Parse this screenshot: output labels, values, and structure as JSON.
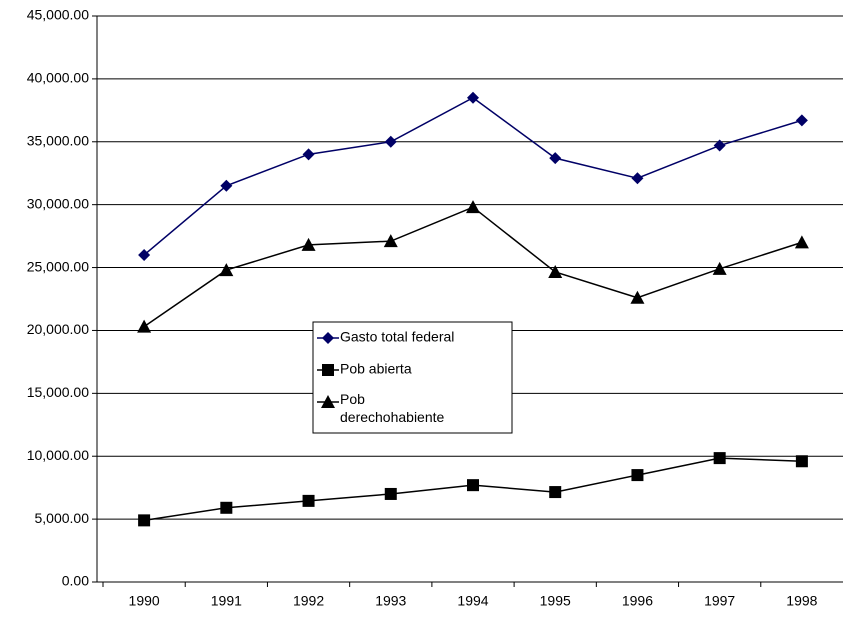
{
  "chart_data": {
    "type": "line",
    "categories": [
      "1990",
      "1991",
      "1992",
      "1993",
      "1994",
      "1995",
      "1996",
      "1997",
      "1998"
    ],
    "series": [
      {
        "name": "Gasto total federal",
        "color": "#000066",
        "marker": "diamond",
        "values": [
          26000,
          31500,
          34000,
          35000,
          38500,
          33700,
          32100,
          34700,
          36700
        ]
      },
      {
        "name": "Pob abierta",
        "color": "#000000",
        "marker": "square",
        "values": [
          4900,
          5900,
          6450,
          7000,
          7700,
          7150,
          8500,
          9850,
          9600
        ]
      },
      {
        "name": "Pob derechohabiente",
        "color": "#000000",
        "marker": "triangle",
        "values": [
          20300,
          24800,
          26800,
          27100,
          29800,
          24650,
          22600,
          24900,
          27000
        ]
      }
    ],
    "ylim": [
      0,
      45000
    ],
    "yticks": [
      {
        "value": 0,
        "label": "0.00"
      },
      {
        "value": 5000,
        "label": "5,000.00"
      },
      {
        "value": 10000,
        "label": "10,000.00"
      },
      {
        "value": 15000,
        "label": "15,000.00"
      },
      {
        "value": 20000,
        "label": "20,000.00"
      },
      {
        "value": 25000,
        "label": "25,000.00"
      },
      {
        "value": 30000,
        "label": "30,000.00"
      },
      {
        "value": 35000,
        "label": "35,000.00"
      },
      {
        "value": 40000,
        "label": "40,000.00"
      },
      {
        "value": 45000,
        "label": "45,000.00"
      }
    ],
    "grid": true
  }
}
